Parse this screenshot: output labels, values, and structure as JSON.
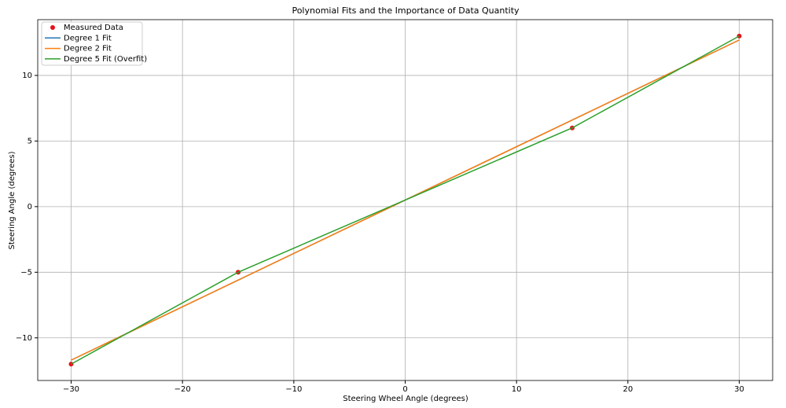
{
  "chart_data": {
    "type": "line",
    "title": "Polynomial Fits and the Importance of Data Quantity",
    "x_label": "Steering Wheel Angle (degrees)",
    "y_label": "Steering Angle (degrees)",
    "x": [
      -30,
      -15,
      15,
      30
    ],
    "series": [
      {
        "name": "Measured Data",
        "kind": "scatter",
        "color": "#e8111a",
        "values": [
          -12,
          -5,
          6,
          13
        ]
      },
      {
        "name": "Degree 1 Fit",
        "kind": "line",
        "color": "#1f77b4",
        "values": [
          -11.7,
          -5.6,
          6.6,
          12.7
        ]
      },
      {
        "name": "Degree 2 Fit",
        "kind": "line",
        "color": "#ff7f0e",
        "values": [
          -11.7,
          -5.6,
          6.6,
          12.7
        ]
      },
      {
        "name": "Degree 5 Fit (Overfit)",
        "kind": "line",
        "color": "#2ca02c",
        "values": [
          -12,
          -5,
          6,
          13
        ]
      }
    ],
    "xlim": [
      -33,
      33
    ],
    "ylim": [
      -13.25,
      14.25
    ],
    "xticks": [
      {
        "value": -30,
        "label": "−30"
      },
      {
        "value": -20,
        "label": "−20"
      },
      {
        "value": -10,
        "label": "−10"
      },
      0,
      10,
      20,
      30
    ],
    "yticks": [
      {
        "value": -10,
        "label": "−10"
      },
      {
        "value": -5,
        "label": "−5"
      },
      0,
      5,
      10
    ],
    "grid": true,
    "legend": "upper-left"
  }
}
